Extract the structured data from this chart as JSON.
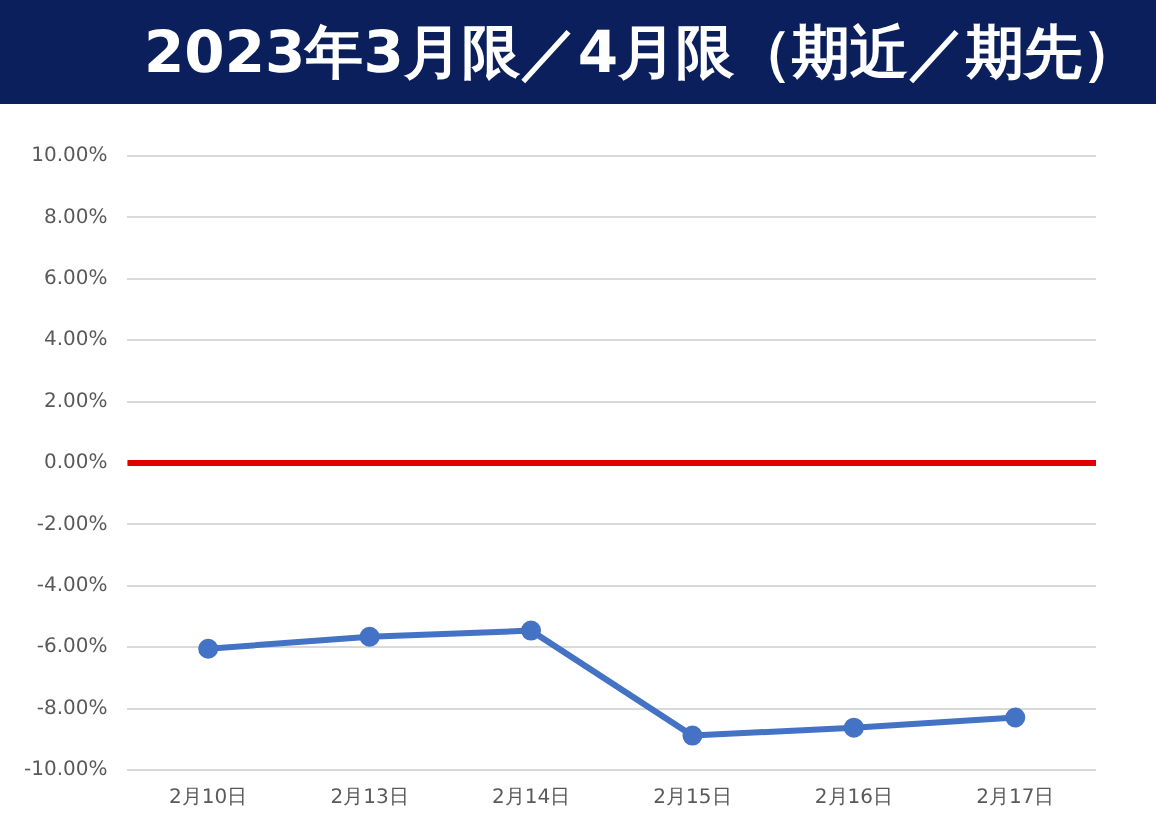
{
  "chart_data": {
    "type": "line",
    "title": "2023年3月限／4月限（期近／期先）",
    "categories": [
      "2月10日",
      "2月13日",
      "2月14日",
      "2月15日",
      "2月16日",
      "2月17日"
    ],
    "series": [
      {
        "color": "#4472c4",
        "values": [
          -6.05,
          -5.66,
          -5.46,
          -8.88,
          -8.62,
          -8.29
        ]
      }
    ],
    "ylim": [
      -10,
      10
    ],
    "yticks": [
      {
        "value": -10,
        "label": "-10.00%"
      },
      {
        "value": -8,
        "label": "-8.00%"
      },
      {
        "value": -6,
        "label": "-6.00%"
      },
      {
        "value": -4,
        "label": "-4.00%"
      },
      {
        "value": -2,
        "label": "-2.00%"
      },
      {
        "value": 0,
        "label": "0.00%"
      },
      {
        "value": 2,
        "label": "2.00%"
      },
      {
        "value": 4,
        "label": "4.00%"
      },
      {
        "value": 6,
        "label": "6.00%"
      },
      {
        "value": 8,
        "label": "8.00%"
      },
      {
        "value": 10,
        "label": "10.00%"
      }
    ],
    "ref_lines": [
      {
        "axis": "y",
        "value": 0,
        "color": "#e00000"
      }
    ],
    "grid": "y",
    "legend": false,
    "marker": "circle",
    "line_style": "solid"
  }
}
